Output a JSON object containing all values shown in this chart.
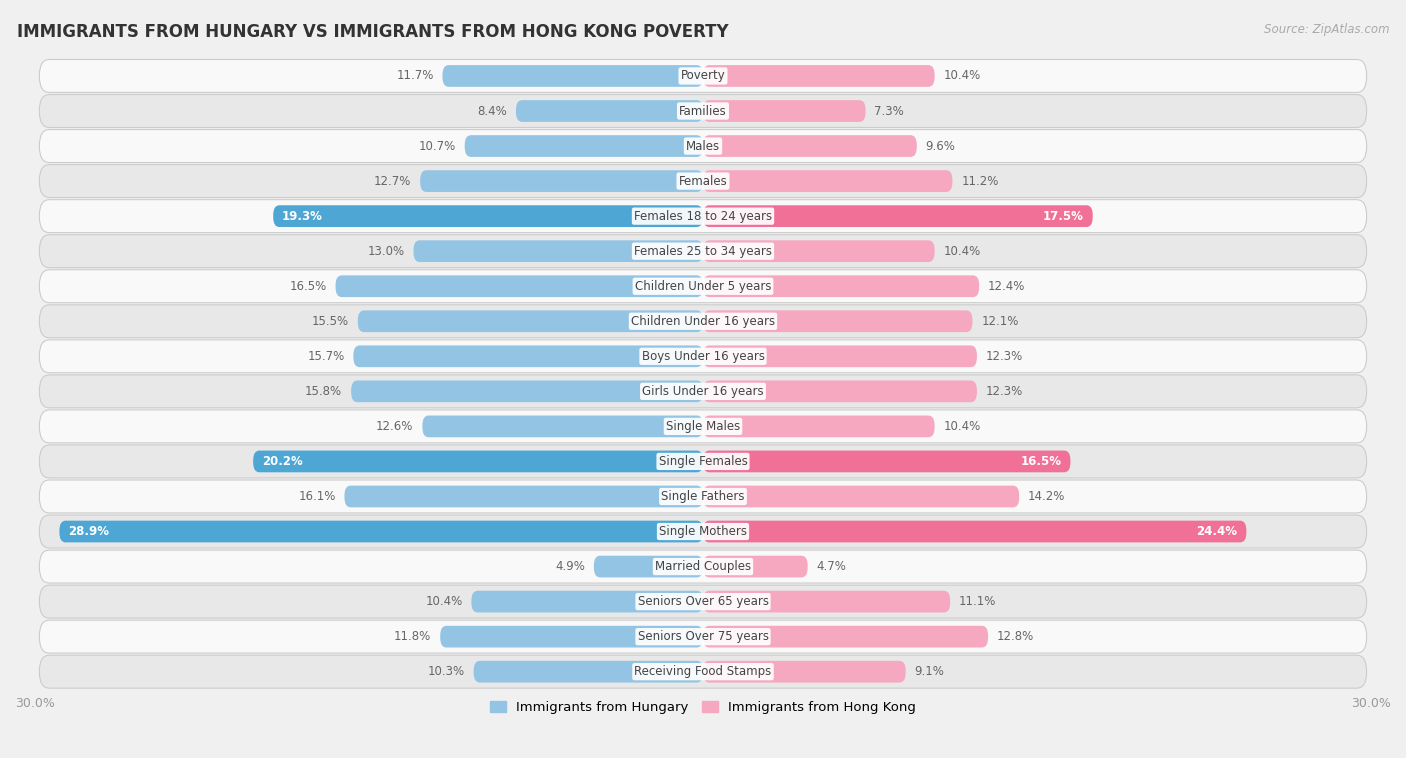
{
  "title": "IMMIGRANTS FROM HUNGARY VS IMMIGRANTS FROM HONG KONG POVERTY",
  "source": "Source: ZipAtlas.com",
  "categories": [
    "Poverty",
    "Families",
    "Males",
    "Females",
    "Females 18 to 24 years",
    "Females 25 to 34 years",
    "Children Under 5 years",
    "Children Under 16 years",
    "Boys Under 16 years",
    "Girls Under 16 years",
    "Single Males",
    "Single Females",
    "Single Fathers",
    "Single Mothers",
    "Married Couples",
    "Seniors Over 65 years",
    "Seniors Over 75 years",
    "Receiving Food Stamps"
  ],
  "hungary_values": [
    11.7,
    8.4,
    10.7,
    12.7,
    19.3,
    13.0,
    16.5,
    15.5,
    15.7,
    15.8,
    12.6,
    20.2,
    16.1,
    28.9,
    4.9,
    10.4,
    11.8,
    10.3
  ],
  "hongkong_values": [
    10.4,
    7.3,
    9.6,
    11.2,
    17.5,
    10.4,
    12.4,
    12.1,
    12.3,
    12.3,
    10.4,
    16.5,
    14.2,
    24.4,
    4.7,
    11.1,
    12.8,
    9.1
  ],
  "hungary_color": "#94c4e4",
  "hongkong_color": "#f5a8bf",
  "hungary_highlight_color": "#4da6d4",
  "hongkong_highlight_color": "#f07098",
  "highlight_rows": [
    4,
    11,
    13
  ],
  "xlim": 30.0,
  "bar_height": 0.62,
  "bg_color": "#f0f0f0",
  "row_bg_light": "#f9f9f9",
  "row_bg_dark": "#e8e8e8",
  "legend_hungary": "Immigrants from Hungary",
  "legend_hongkong": "Immigrants from Hong Kong",
  "label_color_normal": "#666666",
  "label_color_highlight": "#ffffff",
  "cat_label_fontsize": 8.5,
  "val_label_fontsize": 8.5
}
